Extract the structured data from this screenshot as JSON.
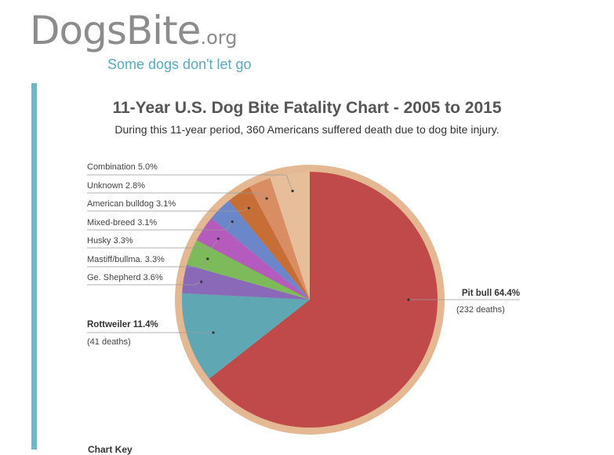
{
  "logo": {
    "name": "DogsBite",
    "tld": ".org",
    "tagline": "Some dogs don't let go"
  },
  "colors": {
    "accent_bar": "#6fb6c6",
    "pie_border": "#e4b892",
    "pit_bull": "#c0494a",
    "rottweiler": "#5ea7b3",
    "ge_shepherd": "#8a6ab8",
    "mastiff": "#7cba5a",
    "husky": "#b45bbd",
    "mixed_breed": "#6c87c9",
    "american_bulldog": "#c76d36",
    "unknown": "#d88e62",
    "combination": "#e6bf9a"
  },
  "chart_data": {
    "type": "pie",
    "title": "11-Year U.S. Dog Bite Fatality Chart - 2005 to 2015",
    "subtitle": "During this 11-year period, 360 Americans suffered death due to dog bite injury.",
    "slices": [
      {
        "name": "Pit bull",
        "percent": 64.4,
        "label": "Pit bull 64.4%",
        "deaths_label": "(232 deaths)",
        "color": "#c0494a"
      },
      {
        "name": "Rottweiler",
        "percent": 11.4,
        "label": "Rottweiler 11.4%",
        "deaths_label": "(41 deaths)",
        "color": "#5ea7b3"
      },
      {
        "name": "Ge. Shepherd",
        "percent": 3.6,
        "label": "Ge. Shepherd 3.6%",
        "color": "#8a6ab8"
      },
      {
        "name": "Mastiff/bullma.",
        "percent": 3.3,
        "label": "Mastiff/bullma. 3.3%",
        "color": "#7cba5a"
      },
      {
        "name": "Husky",
        "percent": 3.3,
        "label": "Husky 3.3%",
        "color": "#b45bbd"
      },
      {
        "name": "Mixed-breed",
        "percent": 3.1,
        "label": "Mixed-breed 3.1%",
        "color": "#6c87c9"
      },
      {
        "name": "American bulldog",
        "percent": 3.1,
        "label": "American bulldog 3.1%",
        "color": "#c76d36"
      },
      {
        "name": "Unknown",
        "percent": 2.8,
        "label": "Unknown 2.8%",
        "color": "#d88e62"
      },
      {
        "name": "Combination",
        "percent": 5.0,
        "label": "Combination 5.0%",
        "color": "#e6bf9a"
      }
    ]
  },
  "footer": {
    "cut_text": "Chart Key"
  }
}
